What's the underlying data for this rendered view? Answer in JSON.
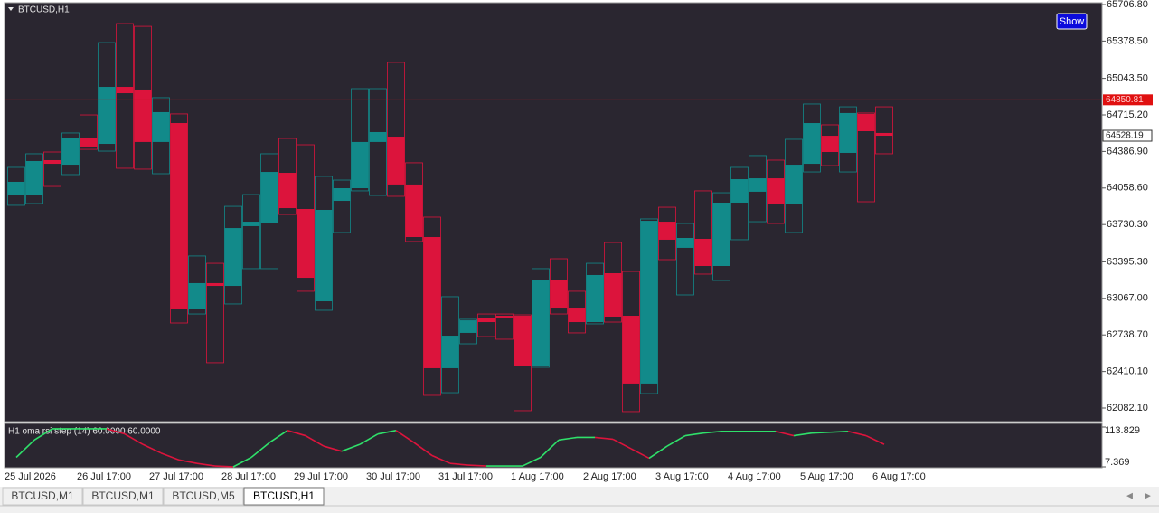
{
  "chart_data": {
    "type": "candlestick",
    "title": "BTCUSD,H1",
    "button": "Show",
    "categories": [
      "25 Jul 2026",
      null,
      null,
      null,
      "26 Jul 17:00",
      null,
      null,
      null,
      "27 Jul 17:00",
      null,
      null,
      null,
      "28 Jul 17:00",
      null,
      null,
      null,
      "29 Jul 17:00",
      null,
      null,
      null,
      "30 Jul 17:00",
      null,
      null,
      null,
      "31 Jul 17:00",
      null,
      null,
      null,
      "1 Aug 17:00",
      null,
      null,
      null,
      "2 Aug 17:00",
      null,
      null,
      null,
      "3 Aug 17:00",
      null,
      null,
      null,
      "4 Aug 17:00",
      null,
      null,
      null,
      "5 Aug 17:00",
      null,
      null,
      null,
      "6 Aug 17:00"
    ],
    "open": [
      63992,
      64000,
      64309,
      64268,
      64512,
      64455,
      64967,
      64943,
      64472,
      64642,
      62968,
      63204,
      63179,
      63716,
      63748,
      64195,
      63870,
      63041,
      63943,
      64057,
      64472,
      64520,
      64090,
      63618,
      62440,
      62757,
      62887,
      62911,
      62911,
      62464,
      63228,
      62984,
      62854,
      63293,
      62911,
      62302,
      63756,
      63521,
      63602,
      63358,
      63927,
      64025,
      64146,
      63911,
      64276,
      64528,
      64374,
      64724,
      64553
    ],
    "high": [
      64244,
      64366,
      64382,
      64553,
      64715,
      65365,
      65536,
      65511,
      64870,
      64724,
      63448,
      63382,
      63894,
      64000,
      64366,
      64504,
      64447,
      64163,
      64130,
      64951,
      64951,
      65187,
      64285,
      63797,
      63082,
      62879,
      62927,
      62927,
      62919,
      63334,
      63423,
      63131,
      63382,
      63569,
      63309,
      63781,
      63886,
      63740,
      64033,
      64016,
      64244,
      64350,
      64309,
      64496,
      64813,
      64626,
      64788,
      64732,
      64788
    ],
    "low": [
      63903,
      63919,
      64073,
      64179,
      64406,
      64390,
      64236,
      64228,
      64187,
      62846,
      62927,
      62489,
      63017,
      63334,
      63334,
      63821,
      63131,
      62960,
      63659,
      64033,
      63992,
      63984,
      63578,
      62196,
      62220,
      62659,
      62724,
      62700,
      62058,
      62448,
      62927,
      62757,
      62838,
      62854,
      62050,
      62212,
      63415,
      63098,
      63285,
      63228,
      63594,
      63756,
      63740,
      63659,
      64203,
      64260,
      64203,
      63935,
      64366
    ],
    "close": [
      64114,
      64301,
      64276,
      64504,
      64431,
      64967,
      64910,
      64472,
      64740,
      62968,
      63204,
      63179,
      63699,
      63756,
      64203,
      63878,
      63252,
      63862,
      64057,
      64472,
      64561,
      64090,
      63618,
      62440,
      62732,
      62870,
      62854,
      62895,
      62456,
      63228,
      62984,
      62854,
      63277,
      62903,
      62302,
      63764,
      63594,
      63610,
      63358,
      63927,
      64138,
      64146,
      63911,
      64268,
      64642,
      64382,
      64732,
      64569,
      64528.19
    ],
    "up_color": "#128a8a",
    "down_color": "#dc143c",
    "bid_line": 64850.81,
    "ylim": [
      61960.2,
      65723.0
    ],
    "yticks": [
      {
        "value": 65706.8,
        "label": "65706.80"
      },
      {
        "value": 65378.5,
        "label": "65378.50"
      },
      {
        "value": 65043.5,
        "label": "65043.50"
      },
      {
        "value": 64715.2,
        "label": "64715.20"
      },
      {
        "value": 64386.9,
        "label": "64386.90"
      },
      {
        "value": 64058.6,
        "label": "64058.60"
      },
      {
        "value": 63730.3,
        "label": "63730.30"
      },
      {
        "value": 63395.3,
        "label": "63395.30"
      },
      {
        "value": 63067,
        "label": "63067.00"
      },
      {
        "value": 62738.7,
        "label": "62738.70"
      },
      {
        "value": 62410.1,
        "label": "62410.10"
      },
      {
        "value": 62082.1,
        "label": "62082.10"
      }
    ],
    "indicator": {
      "type": "line",
      "title": "H1 oma rsi step (14) 60.0000 60.0000",
      "values": [
        32.8,
        79.1,
        109.2,
        109.2,
        109.2,
        109.2,
        95.3,
        67.5,
        44.4,
        25.9,
        16.6,
        9.7,
        7.4,
        32.8,
        72.2,
        104.6,
        90.7,
        62.9,
        49.0,
        67.5,
        95.3,
        104.6,
        72.2,
        37.5,
        16.6,
        12.0,
        9.7,
        9.7,
        9.7,
        32.8,
        79.1,
        86.1,
        86.1,
        81.4,
        56.0,
        30.5,
        62.9,
        90.7,
        97.6,
        102.3,
        102.3,
        102.3,
        102.3,
        90.7,
        97.6,
        99.9,
        102.3,
        90.7,
        67.5
      ],
      "up_color": "#2fe06a",
      "down_color": "#dc143c",
      "ylim": [
        7.369,
        113.829
      ],
      "yticks": [
        113.829,
        7.369
      ]
    },
    "tabs": [
      "BTCUSD,M1",
      "BTCUSD,M1",
      "BTCUSD,M5",
      "BTCUSD,H1"
    ],
    "active_tab": 3
  }
}
